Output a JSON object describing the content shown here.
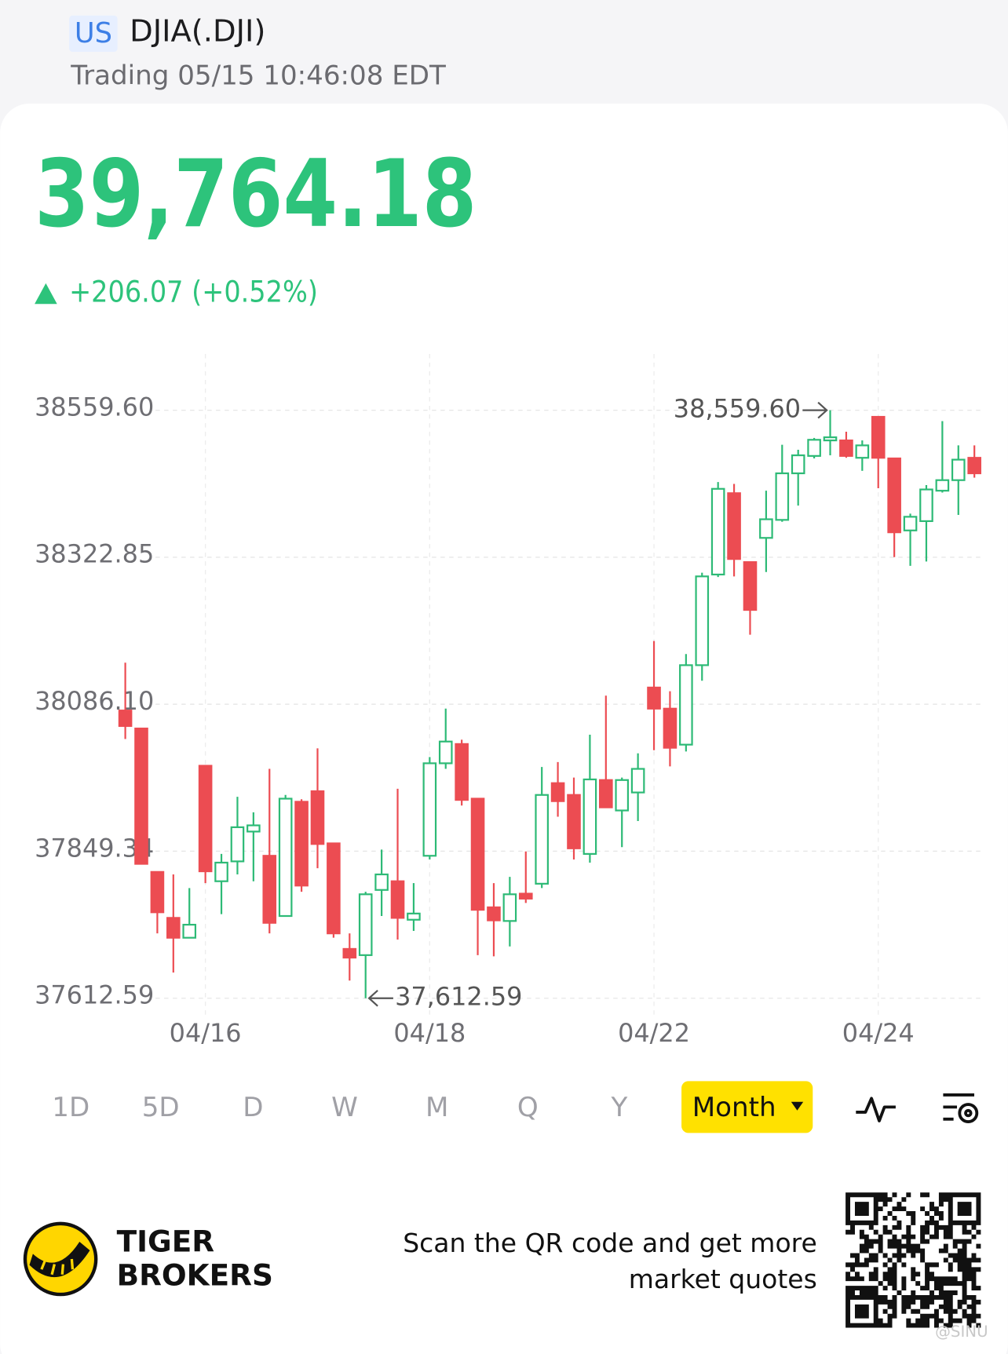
{
  "header": {
    "market": "US",
    "symbol": "DJIA(.DJI)",
    "status": "Trading 05/15 10:46:08 EDT"
  },
  "quote": {
    "price": "39,764.18",
    "change": "+206.07 (+0.52%)"
  },
  "chart_data": {
    "type": "candlestick",
    "categories": [
      null,
      null,
      null,
      null,
      null,
      "04/16",
      null,
      null,
      null,
      null,
      null,
      null,
      null,
      null,
      null,
      null,
      null,
      null,
      null,
      "04/18",
      null,
      null,
      null,
      null,
      null,
      null,
      null,
      null,
      null,
      null,
      null,
      null,
      null,
      "04/22",
      null,
      null,
      null,
      null,
      null,
      null,
      null,
      null,
      null,
      null,
      null,
      null,
      null,
      "04/24",
      null,
      null,
      null,
      null,
      null,
      null
    ],
    "open": [
      38076,
      38047,
      37816,
      37742,
      37710,
      37987,
      37801,
      37833,
      37881,
      37842,
      37745,
      37929,
      37946,
      37862,
      37692,
      37682,
      37787,
      37801,
      37739,
      37842,
      37991,
      38022,
      37934,
      37759,
      37737,
      37781,
      37797,
      37959,
      37940,
      37845,
      37964,
      37915,
      37944,
      38113,
      38079,
      38021,
      38149,
      38295,
      38426,
      38315,
      38354,
      38383,
      38458,
      38486,
      38511,
      38511,
      38483,
      38549,
      38482,
      38366,
      38381,
      38430,
      38447,
      38483
    ],
    "high": [
      38153,
      38047,
      37816,
      37812,
      37790,
      37987,
      37845,
      37937,
      37912,
      37982,
      37940,
      37933,
      38015,
      37862,
      37717,
      37784,
      37852,
      37950,
      37798,
      38001,
      38079,
      38029,
      37934,
      37798,
      37808,
      37849,
      37985,
      37993,
      37968,
      38037,
      38100,
      37968,
      38007,
      38188,
      38107,
      38167,
      38298,
      38444,
      38441,
      38315,
      38430,
      38504,
      38496,
      38515,
      38559.6,
      38525,
      38511,
      38549,
      38482,
      38393,
      38439,
      38542,
      38503,
      38503
    ],
    "low": [
      38030,
      37829,
      37717,
      37654,
      37710,
      37798,
      37748,
      37812,
      37801,
      37717,
      37745,
      37784,
      37822,
      37710,
      37641,
      37612.59,
      37745,
      37707,
      37721,
      37836,
      37982,
      37923,
      37682,
      37680,
      37696,
      37766,
      37790,
      37905,
      37836,
      37831,
      37919,
      37856,
      37898,
      38012,
      37986,
      38010,
      38124,
      38291,
      38292,
      38198,
      38299,
      38380,
      38406,
      38482,
      38487,
      38483,
      38462,
      38434,
      38323,
      38309,
      38316,
      38427,
      38391,
      38451
    ],
    "close": [
      38051,
      37829,
      37751,
      37710,
      37731,
      37817,
      37831,
      37888,
      37891,
      37734,
      37934,
      37794,
      37861,
      37717,
      37678,
      37780,
      37812,
      37742,
      37749,
      37991,
      38026,
      37932,
      37755,
      37738,
      37780,
      37773,
      37940,
      37930,
      37854,
      37965,
      37920,
      37964,
      37982,
      38079,
      38016,
      38149,
      38292,
      38433,
      38320,
      38238,
      38384,
      38458,
      38487,
      38512,
      38516,
      38486,
      38503,
      38483,
      38363,
      38388,
      38432,
      38447,
      38480,
      38458
    ],
    "up_color": "#2dba76",
    "down_color": "#ec4c52",
    "ylim": [
      37579.2,
      38650.1
    ],
    "yticks": [
      {
        "value": 38559.6,
        "label": "38559.60"
      },
      38322.85,
      {
        "value": 38086.1,
        "label": "38086.10"
      },
      37849.34,
      37612.59
    ],
    "grid": true,
    "annotations": [
      {
        "value": 38559.6,
        "label": "38,559.60"
      },
      {
        "value": 37612.59,
        "label": "37,612.59"
      }
    ]
  },
  "tabs": [
    "1D",
    "5D",
    "D",
    "W",
    "M",
    "Q",
    "Y",
    "Month"
  ],
  "footer": {
    "brand": [
      "TIGER",
      "BROKERS"
    ],
    "prompt": [
      "Scan the QR code and get more",
      "market quotes"
    ],
    "watermark": "@SINU"
  }
}
